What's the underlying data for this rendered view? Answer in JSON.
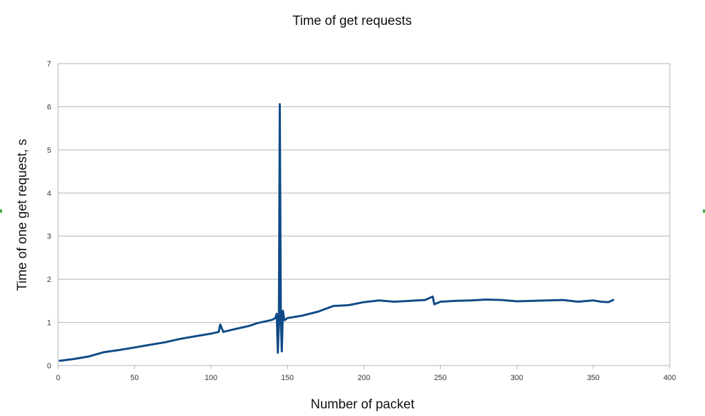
{
  "chart_data": {
    "type": "line",
    "title": "Time of get requests",
    "xlabel": "Number of packet",
    "ylabel": "Time of one get request, s",
    "xlim": [
      0,
      400
    ],
    "ylim": [
      0,
      7
    ],
    "xticks": [
      0,
      50,
      100,
      150,
      200,
      250,
      300,
      350,
      400
    ],
    "yticks": [
      0,
      1,
      2,
      3,
      4,
      5,
      6,
      7
    ],
    "grid": "horizontal",
    "legend": "none",
    "colors": {
      "series": "#0f4a86",
      "grid": "#b3b3b3",
      "axis": "#b3b3b3"
    },
    "series": [
      {
        "points": [
          [
            1,
            0.11
          ],
          [
            10,
            0.15
          ],
          [
            20,
            0.21
          ],
          [
            30,
            0.31
          ],
          [
            40,
            0.36
          ],
          [
            50,
            0.42
          ],
          [
            60,
            0.48
          ],
          [
            70,
            0.54
          ],
          [
            80,
            0.62
          ],
          [
            90,
            0.68
          ],
          [
            100,
            0.74
          ],
          [
            105,
            0.78
          ],
          [
            106,
            0.95
          ],
          [
            108,
            0.78
          ],
          [
            115,
            0.84
          ],
          [
            125,
            0.92
          ],
          [
            130,
            0.98
          ],
          [
            135,
            1.02
          ],
          [
            140,
            1.06
          ],
          [
            142,
            1.1
          ],
          [
            143,
            1.2
          ],
          [
            143.7,
            0.3
          ],
          [
            144.4,
            1.0
          ],
          [
            145,
            6.06
          ],
          [
            145.7,
            1.0
          ],
          [
            146.3,
            0.33
          ],
          [
            147,
            1.27
          ],
          [
            148,
            1.05
          ],
          [
            150,
            1.1
          ],
          [
            160,
            1.16
          ],
          [
            170,
            1.25
          ],
          [
            180,
            1.38
          ],
          [
            190,
            1.4
          ],
          [
            200,
            1.47
          ],
          [
            210,
            1.51
          ],
          [
            220,
            1.48
          ],
          [
            230,
            1.5
          ],
          [
            240,
            1.52
          ],
          [
            245,
            1.6
          ],
          [
            246,
            1.42
          ],
          [
            250,
            1.48
          ],
          [
            260,
            1.5
          ],
          [
            270,
            1.51
          ],
          [
            280,
            1.53
          ],
          [
            290,
            1.52
          ],
          [
            300,
            1.49
          ],
          [
            310,
            1.5
          ],
          [
            320,
            1.51
          ],
          [
            330,
            1.52
          ],
          [
            340,
            1.48
          ],
          [
            350,
            1.51
          ],
          [
            355,
            1.48
          ],
          [
            360,
            1.47
          ],
          [
            363,
            1.52
          ]
        ]
      }
    ]
  }
}
